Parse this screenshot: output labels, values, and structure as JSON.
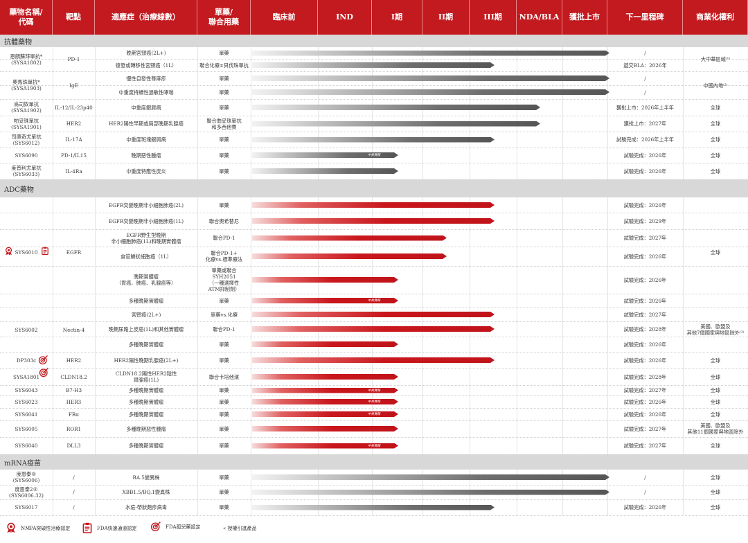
{
  "columns": [
    "藥物名稱/\n代碼",
    "靶點",
    "適應症（治療線數）",
    "單藥/\n聯合用藥",
    "臨床前",
    "IND",
    "I期",
    "II期",
    "III期",
    "NDA/BLA",
    "獲批上市",
    "下一里程碑",
    "商業化權利"
  ],
  "sections": {
    "antibody": "抗體藥物",
    "adc": "ADC藥物",
    "mrna": "mRNA疫苗"
  },
  "rows": [
    {
      "name": "",
      "target": "",
      "indication": "晚期宮頸癌(2L+)",
      "regimen": "單藥",
      "milestone": "/",
      "rights": ""
    },
    {
      "name": "",
      "target": "",
      "indication": "復發或轉移性宮頸癌（1L）",
      "regimen": "聯合化療±貝伐珠單抗",
      "milestone": "遞交BLA：2026年",
      "rights": ""
    },
    {
      "name": "",
      "target": "",
      "indication": "慢性自發性蕁麻疹",
      "regimen": "單藥",
      "milestone": "/",
      "rights": ""
    },
    {
      "name": "",
      "target": "",
      "indication": "中重度持續性過敏性哮喘",
      "regimen": "單藥",
      "milestone": "/",
      "rights": ""
    },
    {
      "name": "烏司奴單抗\n(SYSA1902)",
      "target": "IL-12/IL-23p40",
      "indication": "中重度銀屑病",
      "regimen": "單藥",
      "milestone": "獲批上市：2026年上半年",
      "rights": "全球"
    },
    {
      "name": "帕妥珠單抗\n(SYSA1901)",
      "target": "HER2",
      "indication": "HER2陽性早期或局部晚期乳腺癌",
      "regimen": "聯合曲妥珠單抗\n和多西他賽",
      "milestone": "獲批上市：2027年",
      "rights": "全球"
    },
    {
      "name": "司庫奇尤單抗\n(SYS6012)",
      "target": "IL-17A",
      "indication": "中重度斑塊銀屑病",
      "regimen": "單藥",
      "milestone": "試驗完成：2026年上半年",
      "rights": "全球"
    },
    {
      "name": "SYS6090",
      "target": "PD-1/IL15",
      "indication": "晚期惡性腫瘤",
      "regimen": "單藥",
      "milestone": "試驗完成：2026年",
      "rights": "全球"
    },
    {
      "name": "度普利尤單抗\n(SYS6033)",
      "target": "IL-4Ra",
      "indication": "中重度特應性皮炎",
      "regimen": "單藥",
      "milestone": "試驗完成：2026年",
      "rights": "全球"
    },
    {
      "name": "",
      "target": "",
      "indication": "EGFR突變晚期非小細胞肺癌(2L)",
      "regimen": "單藥",
      "milestone": "試驗完成：2026年",
      "rights": ""
    },
    {
      "name": "",
      "target": "",
      "indication": "EGFR突變晚期非小細胞肺癌(1L)",
      "regimen": "聯合奧希替尼",
      "milestone": "試驗完成：2029年",
      "rights": ""
    },
    {
      "name": "",
      "target": "",
      "indication": "EGFR野生型晚期\n非小細胞肺癌(1L)和晚期實體瘤",
      "regimen": "聯合PD-1",
      "milestone": "試驗完成：2027年",
      "rights": ""
    },
    {
      "name": "",
      "target": "",
      "indication": "食管鱗狀細胞癌（1L）",
      "regimen": "聯合PD-1+\n化療vs.標準療法",
      "milestone": "試驗完成：2026年",
      "rights": ""
    },
    {
      "name": "",
      "target": "",
      "indication": "晚期實體瘤\n（胃癌、肺癌、乳腺癌等）",
      "regimen": "單藥或聯合\nSYH2051\n（一種選擇性\nATM抑制劑）",
      "milestone": "試驗完成：2026年",
      "rights": ""
    },
    {
      "name": "",
      "target": "",
      "indication": "多種晚期實體瘤",
      "regimen": "單藥",
      "milestone": "試驗完成：2026年",
      "rights": ""
    },
    {
      "name": "",
      "target": "",
      "indication": "宮頸癌(2L+)",
      "regimen": "單藥vs.化療",
      "milestone": "試驗完成：2027年",
      "rights": ""
    },
    {
      "name": "",
      "target": "",
      "indication": "晚期尿路上皮癌(1L)和其他實體瘤",
      "regimen": "聯合PD-1",
      "milestone": "試驗完成：2028年",
      "rights": ""
    },
    {
      "name": "",
      "target": "",
      "indication": "多種晚期實體瘤",
      "regimen": "單藥",
      "milestone": "試驗完成：2026年",
      "rights": ""
    },
    {
      "name": "DP303c",
      "target": "HER2",
      "indication": "HER2陽性晚期乳腺癌(2L+)",
      "regimen": "單藥",
      "milestone": "試驗完成：2026年",
      "rights": "全球"
    },
    {
      "name": "SYSA1801",
      "target": "CLDN18.2",
      "indication": "CLDN18.2陽性HER2陰性\n胃腺癌(1L)",
      "regimen": "聯合卡培他濱",
      "milestone": "試驗完成：2028年",
      "rights": "全球"
    },
    {
      "name": "SYS6043",
      "target": "B7-H3",
      "indication": "多種晚期實體瘤",
      "regimen": "單藥",
      "milestone": "試驗完成：2027年",
      "rights": "全球"
    },
    {
      "name": "SYS6023",
      "target": "HER3",
      "indication": "多種晚期實體瘤",
      "regimen": "單藥",
      "milestone": "試驗完成：2026年",
      "rights": "全球"
    },
    {
      "name": "SYS6041",
      "target": "FRα",
      "indication": "多種晚期實體瘤",
      "regimen": "單藥",
      "milestone": "試驗完成：2026年",
      "rights": "全球"
    },
    {
      "name": "SYS6005",
      "target": "ROR1",
      "indication": "多種晚期惡性腫瘤",
      "regimen": "單藥",
      "milestone": "試驗完成：2027年",
      "rights": "美國、歐盟及\n其他11個國家與地區除外"
    },
    {
      "name": "SYS6040",
      "target": "DLL3",
      "indication": "多種晚期實體瘤",
      "regimen": "單藥",
      "milestone": "試驗完成：2027年",
      "rights": "全球"
    },
    {
      "name": "度恩泰®\n(SYS6006)",
      "target": "/",
      "indication": "BA.5變異株",
      "regimen": "單藥",
      "milestone": "/",
      "rights": "全球"
    },
    {
      "name": "度恩泰2®\n(SYS6006.32)",
      "target": "/",
      "indication": "XBB1.5/BQ.1變異株",
      "regimen": "單藥",
      "milestone": "/",
      "rights": "全球"
    },
    {
      "name": "SYS6017",
      "target": "/",
      "indication": "水痘-帶狀皰疹病毒",
      "regimen": "單藥",
      "milestone": "試驗完成：2026年",
      "rights": "全球"
    }
  ],
  "merged": [
    {
      "name": "恩朗蘇拜單抗*\n(SYSA1802)",
      "target": "PD-1",
      "rights": "大中華區域⁽¹⁾"
    },
    {
      "name": "奧馬珠單抗*\n(SYSA1903)",
      "target": "IgE",
      "rights": "中國內地⁽²⁾"
    },
    {
      "name": "SYS6010",
      "target": "EGFR",
      "rights": "全球"
    },
    {
      "name": "SYS6002",
      "target": "Nectin-4",
      "rights": "美國、歐盟及\n其他7個國家與地區除外⁽³⁾"
    }
  ],
  "bar_note": "中美雙報",
  "legend": {
    "nmpa": "NMPA突破性治療認定",
    "fda_fast": "FDA快速通道認定",
    "fda_orphan": "FDA孤兒藥認定",
    "licensed": "« 授權引進產品"
  },
  "colors": {
    "accent": "#c21a1f",
    "section_bg": "#d8d8d8"
  }
}
